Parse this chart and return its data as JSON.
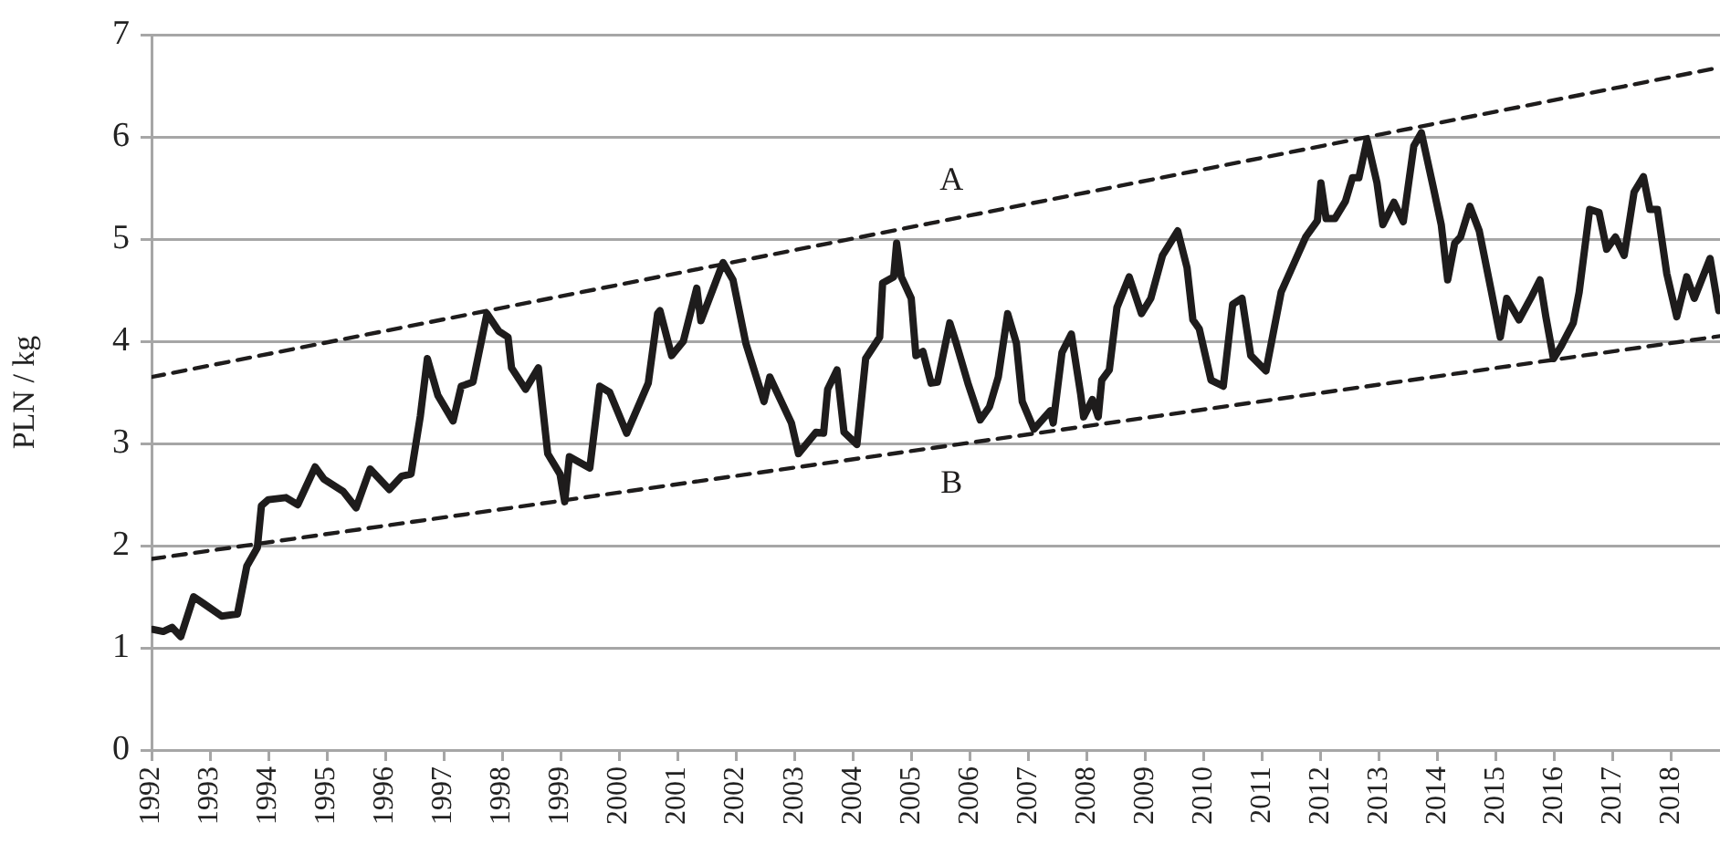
{
  "chart_data": {
    "type": "line",
    "ylabel": "PLN / kg",
    "xlim": [
      1992,
      2018.84
    ],
    "xticks": [
      1992,
      1993,
      1994,
      1995,
      1996,
      1997,
      1998,
      1999,
      2000,
      2001,
      2002,
      2003,
      2004,
      2005,
      2006,
      2007,
      2008,
      2009,
      2010,
      2011,
      2012,
      2013,
      2014,
      2015,
      2016,
      2017,
      2018
    ],
    "ylim": [
      0,
      7
    ],
    "yticks": [
      0,
      1,
      2,
      3,
      4,
      5,
      6,
      7
    ],
    "grid": "y",
    "legend": false,
    "marker": "none",
    "series": [
      {
        "color": "#1e1c1c",
        "line_style": "solid",
        "x": [
          1992.03,
          1992.2,
          1992.35,
          1992.5,
          1992.72,
          1992.9,
          1993.2,
          1993.47,
          1993.63,
          1993.81,
          1993.88,
          1994.0,
          1994.3,
          1994.5,
          1994.8,
          1994.95,
          1995.28,
          1995.5,
          1995.74,
          1996.07,
          1996.28,
          1996.44,
          1996.6,
          1996.72,
          1996.9,
          1997.16,
          1997.3,
          1997.5,
          1997.74,
          1997.94,
          1998.1,
          1998.16,
          1998.4,
          1998.62,
          1998.78,
          1998.99,
          1999.07,
          1999.15,
          1999.5,
          1999.67,
          1999.84,
          2000.13,
          2000.5,
          2000.66,
          2000.7,
          2000.9,
          2001.1,
          2001.33,
          2001.4,
          2001.78,
          2001.95,
          2002.17,
          2002.48,
          2002.58,
          2002.95,
          2003.07,
          2003.37,
          2003.5,
          2003.57,
          2003.73,
          2003.85,
          2004.07,
          2004.22,
          2004.46,
          2004.51,
          2004.7,
          2004.75,
          2004.83,
          2005.0,
          2005.08,
          2005.2,
          2005.34,
          2005.45,
          2005.66,
          2005.76,
          2005.97,
          2006.18,
          2006.34,
          2006.49,
          2006.65,
          2006.8,
          2006.9,
          2007.1,
          2007.38,
          2007.43,
          2007.58,
          2007.74,
          2007.9,
          2007.95,
          2008.1,
          2008.2,
          2008.26,
          2008.39,
          2008.52,
          2008.73,
          2008.94,
          2009.1,
          2009.3,
          2009.56,
          2009.72,
          2009.82,
          2009.93,
          2010.13,
          2010.34,
          2010.5,
          2010.66,
          2010.81,
          2011.07,
          2011.33,
          2011.54,
          2011.75,
          2011.95,
          2012.01,
          2012.1,
          2012.25,
          2012.43,
          2012.55,
          2012.66,
          2012.8,
          2012.97,
          2013.07,
          2013.26,
          2013.42,
          2013.6,
          2013.73,
          2013.94,
          2014.07,
          2014.18,
          2014.3,
          2014.4,
          2014.56,
          2014.72,
          2014.93,
          2015.08,
          2015.19,
          2015.4,
          2015.6,
          2015.76,
          2015.86,
          2015.99,
          2016.12,
          2016.33,
          2016.43,
          2016.61,
          2016.77,
          2016.9,
          2017.05,
          2017.2,
          2017.37,
          2017.53,
          2017.64,
          2017.77,
          2017.93,
          2018.1,
          2018.27,
          2018.4,
          2018.67,
          2018.82
        ],
        "values": [
          1.18,
          1.16,
          1.2,
          1.11,
          1.5,
          1.43,
          1.31,
          1.33,
          1.8,
          1.98,
          2.39,
          2.45,
          2.47,
          2.4,
          2.77,
          2.65,
          2.53,
          2.37,
          2.75,
          2.55,
          2.68,
          2.7,
          3.27,
          3.83,
          3.47,
          3.22,
          3.56,
          3.6,
          4.27,
          4.1,
          4.04,
          3.74,
          3.53,
          3.74,
          2.9,
          2.7,
          2.43,
          2.87,
          2.76,
          3.56,
          3.5,
          3.1,
          3.59,
          4.27,
          4.3,
          3.86,
          4.0,
          4.52,
          4.2,
          4.77,
          4.6,
          3.98,
          3.41,
          3.65,
          3.2,
          2.9,
          3.11,
          3.1,
          3.53,
          3.72,
          3.11,
          2.99,
          3.83,
          4.04,
          4.57,
          4.63,
          4.96,
          4.63,
          4.42,
          3.86,
          3.9,
          3.59,
          3.6,
          4.18,
          4.0,
          3.59,
          3.23,
          3.36,
          3.65,
          4.27,
          3.98,
          3.41,
          3.14,
          3.32,
          3.2,
          3.89,
          4.07,
          3.48,
          3.26,
          3.43,
          3.26,
          3.62,
          3.72,
          4.33,
          4.63,
          4.27,
          4.42,
          4.84,
          5.08,
          4.72,
          4.21,
          4.12,
          3.62,
          3.56,
          4.36,
          4.42,
          3.86,
          3.71,
          4.48,
          4.75,
          5.02,
          5.18,
          5.55,
          5.2,
          5.2,
          5.37,
          5.6,
          5.6,
          5.97,
          5.55,
          5.14,
          5.36,
          5.17,
          5.91,
          6.04,
          5.49,
          5.14,
          4.6,
          4.96,
          5.02,
          5.32,
          5.08,
          4.48,
          4.04,
          4.42,
          4.21,
          4.42,
          4.6,
          4.24,
          3.83,
          3.95,
          4.18,
          4.48,
          5.29,
          5.26,
          4.9,
          5.02,
          4.84,
          5.46,
          5.61,
          5.29,
          5.29,
          4.66,
          4.24,
          4.63,
          4.42,
          4.81,
          4.3
        ]
      },
      {
        "name": "A",
        "type": "line",
        "color": "#1e1c1c",
        "line_style": "dashed",
        "x": [
          1992,
          2018.84
        ],
        "values": [
          3.65,
          6.68
        ]
      },
      {
        "name": "B",
        "type": "line",
        "color": "#1e1c1c",
        "line_style": "dashed",
        "x": [
          1992,
          2018.84
        ],
        "values": [
          1.87,
          4.05
        ]
      }
    ]
  }
}
